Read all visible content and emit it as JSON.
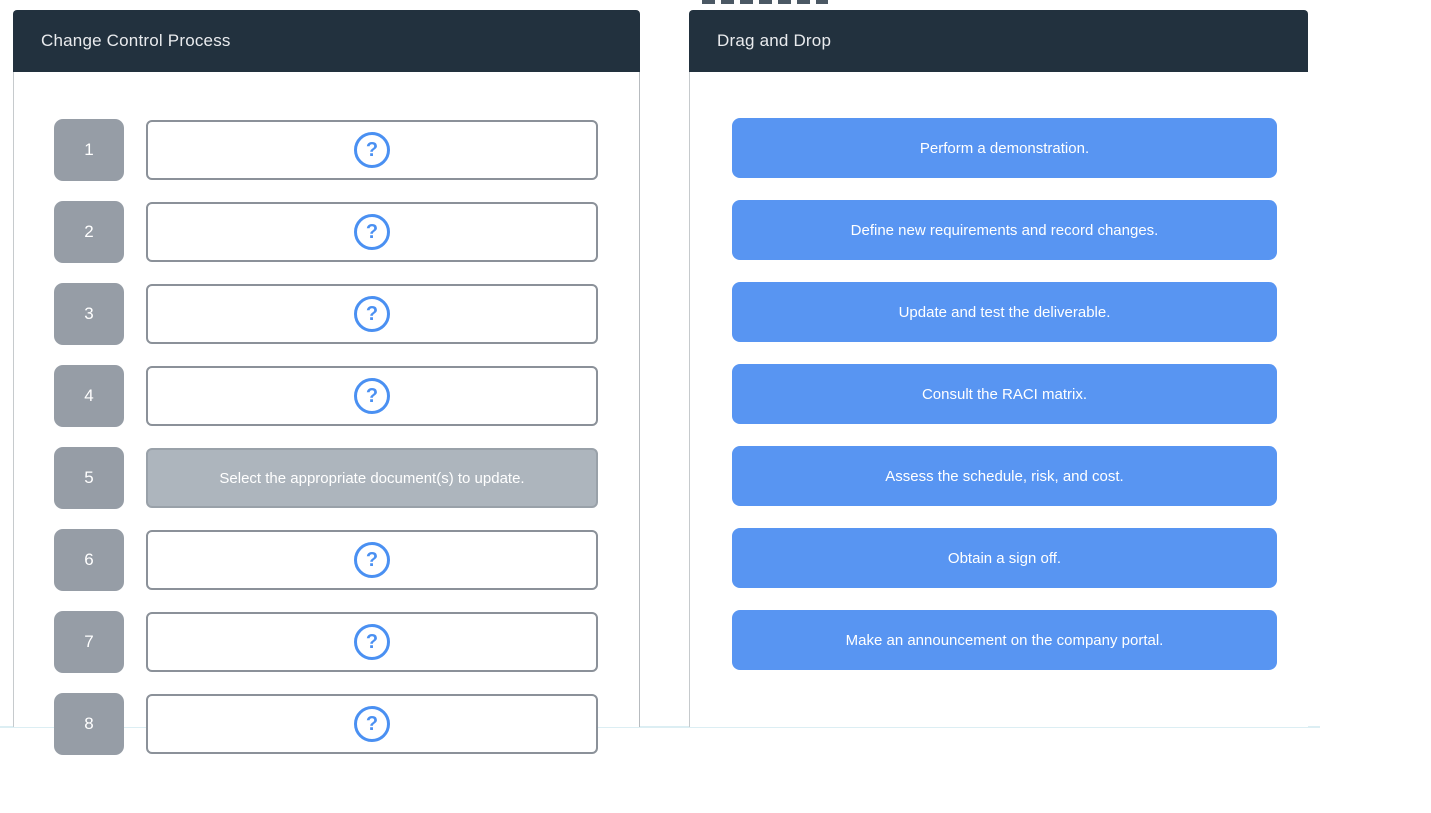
{
  "left_panel": {
    "title": "Change Control Process",
    "slots": [
      {
        "number": "1",
        "state": "empty"
      },
      {
        "number": "2",
        "state": "empty"
      },
      {
        "number": "3",
        "state": "empty"
      },
      {
        "number": "4",
        "state": "empty"
      },
      {
        "number": "5",
        "state": "filled",
        "text": "Select the appropriate document(s) to update."
      },
      {
        "number": "6",
        "state": "empty"
      },
      {
        "number": "7",
        "state": "empty"
      },
      {
        "number": "8",
        "state": "empty"
      }
    ]
  },
  "right_panel": {
    "title": "Drag and Drop",
    "items": [
      {
        "label": "Perform a demonstration."
      },
      {
        "label": "Define new requirements and record changes."
      },
      {
        "label": "Update and test the deliverable."
      },
      {
        "label": "Consult the RACI matrix."
      },
      {
        "label": "Assess the schedule, risk, and cost."
      },
      {
        "label": "Obtain a sign off."
      },
      {
        "label": "Make an announcement on the company portal."
      }
    ]
  },
  "icons": {
    "question": "?"
  },
  "colors": {
    "header_bg": "#22313e",
    "header_text": "#e9ebee",
    "badge_bg": "#969da6",
    "box_border": "#8b9199",
    "filled_bg": "#adb5bd",
    "filled_border": "#99a1a9",
    "icon_blue": "#4a90f2",
    "button_bg": "#5895f2",
    "divider": "#dceef3"
  }
}
